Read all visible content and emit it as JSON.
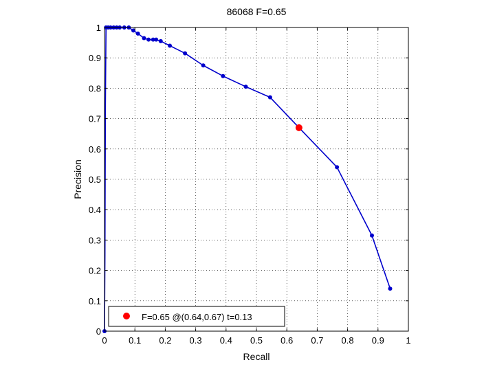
{
  "chart_data": {
    "type": "line",
    "title": "86068 F=0.65",
    "xlabel": "Recall",
    "ylabel": "Precision",
    "xlim": [
      0,
      1
    ],
    "ylim": [
      0,
      1
    ],
    "xticks": [
      "0",
      "0.1",
      "0.2",
      "0.3",
      "0.4",
      "0.5",
      "0.6",
      "0.7",
      "0.8",
      "0.9",
      "1"
    ],
    "yticks": [
      "0",
      "0.1",
      "0.2",
      "0.3",
      "0.4",
      "0.5",
      "0.6",
      "0.7",
      "0.8",
      "0.9",
      "1"
    ],
    "grid": true,
    "series": [
      {
        "color": "#0000cc",
        "marker": "circle",
        "x": [
          0.0,
          0.0015,
          0.003,
          0.005,
          0.008,
          0.012,
          0.015,
          0.02,
          0.03,
          0.04,
          0.05,
          0.065,
          0.08,
          0.095,
          0.11,
          0.13,
          0.145,
          0.16,
          0.17,
          0.185,
          0.215,
          0.265,
          0.325,
          0.39,
          0.465,
          0.545,
          0.64,
          0.765,
          0.88,
          0.94
        ],
        "y": [
          0.0,
          0.25,
          0.75,
          1.0,
          1.0,
          1.0,
          1.0,
          1.0,
          1.0,
          1.0,
          1.0,
          1.0,
          1.0,
          0.99,
          0.98,
          0.965,
          0.96,
          0.96,
          0.96,
          0.955,
          0.94,
          0.915,
          0.875,
          0.84,
          0.805,
          0.77,
          0.67,
          0.54,
          0.315,
          0.14
        ],
        "marker_x": [
          0.0,
          0.005,
          0.012,
          0.02,
          0.03,
          0.04,
          0.05,
          0.065,
          0.08,
          0.095,
          0.11,
          0.13,
          0.145,
          0.16,
          0.17,
          0.185,
          0.215,
          0.265,
          0.325,
          0.39,
          0.465,
          0.545,
          0.765,
          0.88,
          0.94
        ],
        "marker_y": [
          0.0,
          1.0,
          1.0,
          1.0,
          1.0,
          1.0,
          1.0,
          1.0,
          1.0,
          0.99,
          0.98,
          0.965,
          0.96,
          0.96,
          0.96,
          0.955,
          0.94,
          0.915,
          0.875,
          0.84,
          0.805,
          0.77,
          0.54,
          0.315,
          0.14
        ]
      }
    ],
    "highlight": {
      "x": 0.64,
      "y": 0.67,
      "color": "#ff0000"
    },
    "legend": {
      "placement": "bottom-left",
      "text": "F=0.65 @(0.64,0.67) t=0.13"
    }
  }
}
